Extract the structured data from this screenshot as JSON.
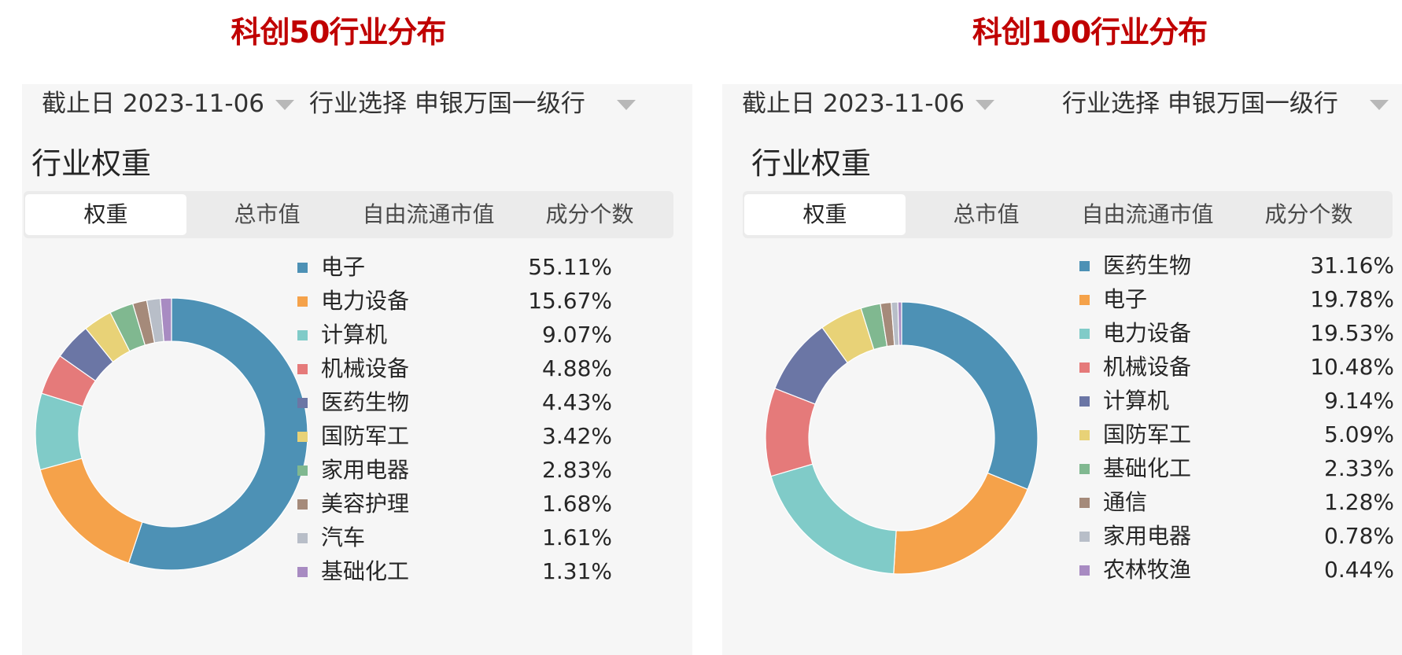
{
  "chart_data": [
    {
      "type": "pie",
      "title": "科创50行业分布",
      "cutoff_label": "截止日",
      "cutoff_date": "2023-11-06",
      "industry_label": "行业选择",
      "industry_value": "申银万国一级行",
      "section_title": "行业权重",
      "tabs": [
        "权重",
        "总市值",
        "自由流通市值",
        "成分个数"
      ],
      "active_tab": 0,
      "categories": [
        "电子",
        "电力设备",
        "计算机",
        "机械设备",
        "医药生物",
        "国防军工",
        "家用电器",
        "美容护理",
        "汽车",
        "基础化工"
      ],
      "values": [
        55.11,
        15.67,
        9.07,
        4.88,
        4.43,
        3.42,
        2.83,
        1.68,
        1.61,
        1.31
      ],
      "value_labels": [
        "55.11%",
        "15.67%",
        "9.07%",
        "4.88%",
        "4.43%",
        "3.42%",
        "2.83%",
        "1.68%",
        "1.61%",
        "1.31%"
      ],
      "colors": [
        "#4d91b5",
        "#f5a24a",
        "#80cbc8",
        "#e57a7a",
        "#6b76a5",
        "#e8d277",
        "#80b890",
        "#a58a7a",
        "#b8bec8",
        "#a88bc2"
      ],
      "legend_position": "right"
    },
    {
      "type": "pie",
      "title": "科创100行业分布",
      "cutoff_label": "截止日",
      "cutoff_date": "2023-11-06",
      "industry_label": "行业选择",
      "industry_value": "申银万国一级行",
      "section_title": "行业权重",
      "tabs": [
        "权重",
        "总市值",
        "自由流通市值",
        "成分个数"
      ],
      "active_tab": 0,
      "categories": [
        "医药生物",
        "电子",
        "电力设备",
        "机械设备",
        "计算机",
        "国防军工",
        "基础化工",
        "通信",
        "家用电器",
        "农林牧渔"
      ],
      "values": [
        31.16,
        19.78,
        19.53,
        10.48,
        9.14,
        5.09,
        2.33,
        1.28,
        0.78,
        0.44
      ],
      "value_labels": [
        "31.16%",
        "19.78%",
        "19.53%",
        "10.48%",
        "9.14%",
        "5.09%",
        "2.33%",
        "1.28%",
        "0.78%",
        "0.44%"
      ],
      "colors": [
        "#4d91b5",
        "#f5a24a",
        "#80cbc8",
        "#e57a7a",
        "#6b76a5",
        "#e8d277",
        "#80b890",
        "#a58a7a",
        "#b8bec8",
        "#a88bc2"
      ],
      "legend_position": "right"
    }
  ]
}
